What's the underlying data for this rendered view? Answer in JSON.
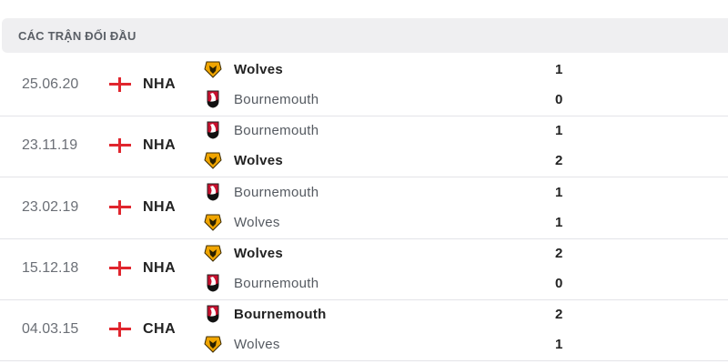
{
  "header": {
    "title": "CÁC TRẬN ĐỐI ĐẦU"
  },
  "colors": {
    "flag_red": "#e0262e",
    "wolves_gold": "#f0a500",
    "bournemouth_red": "#c8102e"
  },
  "matches": [
    {
      "date": "25.06.20",
      "flag": "england-flag-icon",
      "competition": "NHA",
      "home": {
        "name": "Wolves",
        "logo": "wolves-logo-icon",
        "score": "1",
        "winner": true
      },
      "away": {
        "name": "Bournemouth",
        "logo": "bournemouth-logo-icon",
        "score": "0",
        "winner": false
      }
    },
    {
      "date": "23.11.19",
      "flag": "england-flag-icon",
      "competition": "NHA",
      "home": {
        "name": "Bournemouth",
        "logo": "bournemouth-logo-icon",
        "score": "1",
        "winner": false
      },
      "away": {
        "name": "Wolves",
        "logo": "wolves-logo-icon",
        "score": "2",
        "winner": true
      }
    },
    {
      "date": "23.02.19",
      "flag": "england-flag-icon",
      "competition": "NHA",
      "home": {
        "name": "Bournemouth",
        "logo": "bournemouth-logo-icon",
        "score": "1",
        "winner": false
      },
      "away": {
        "name": "Wolves",
        "logo": "wolves-logo-icon",
        "score": "1",
        "winner": false
      }
    },
    {
      "date": "15.12.18",
      "flag": "england-flag-icon",
      "competition": "NHA",
      "home": {
        "name": "Wolves",
        "logo": "wolves-logo-icon",
        "score": "2",
        "winner": true
      },
      "away": {
        "name": "Bournemouth",
        "logo": "bournemouth-logo-icon",
        "score": "0",
        "winner": false
      }
    },
    {
      "date": "04.03.15",
      "flag": "england-flag-icon",
      "competition": "CHA",
      "home": {
        "name": "Bournemouth",
        "logo": "bournemouth-logo-icon",
        "score": "2",
        "winner": true
      },
      "away": {
        "name": "Wolves",
        "logo": "wolves-logo-icon",
        "score": "1",
        "winner": false
      }
    }
  ]
}
